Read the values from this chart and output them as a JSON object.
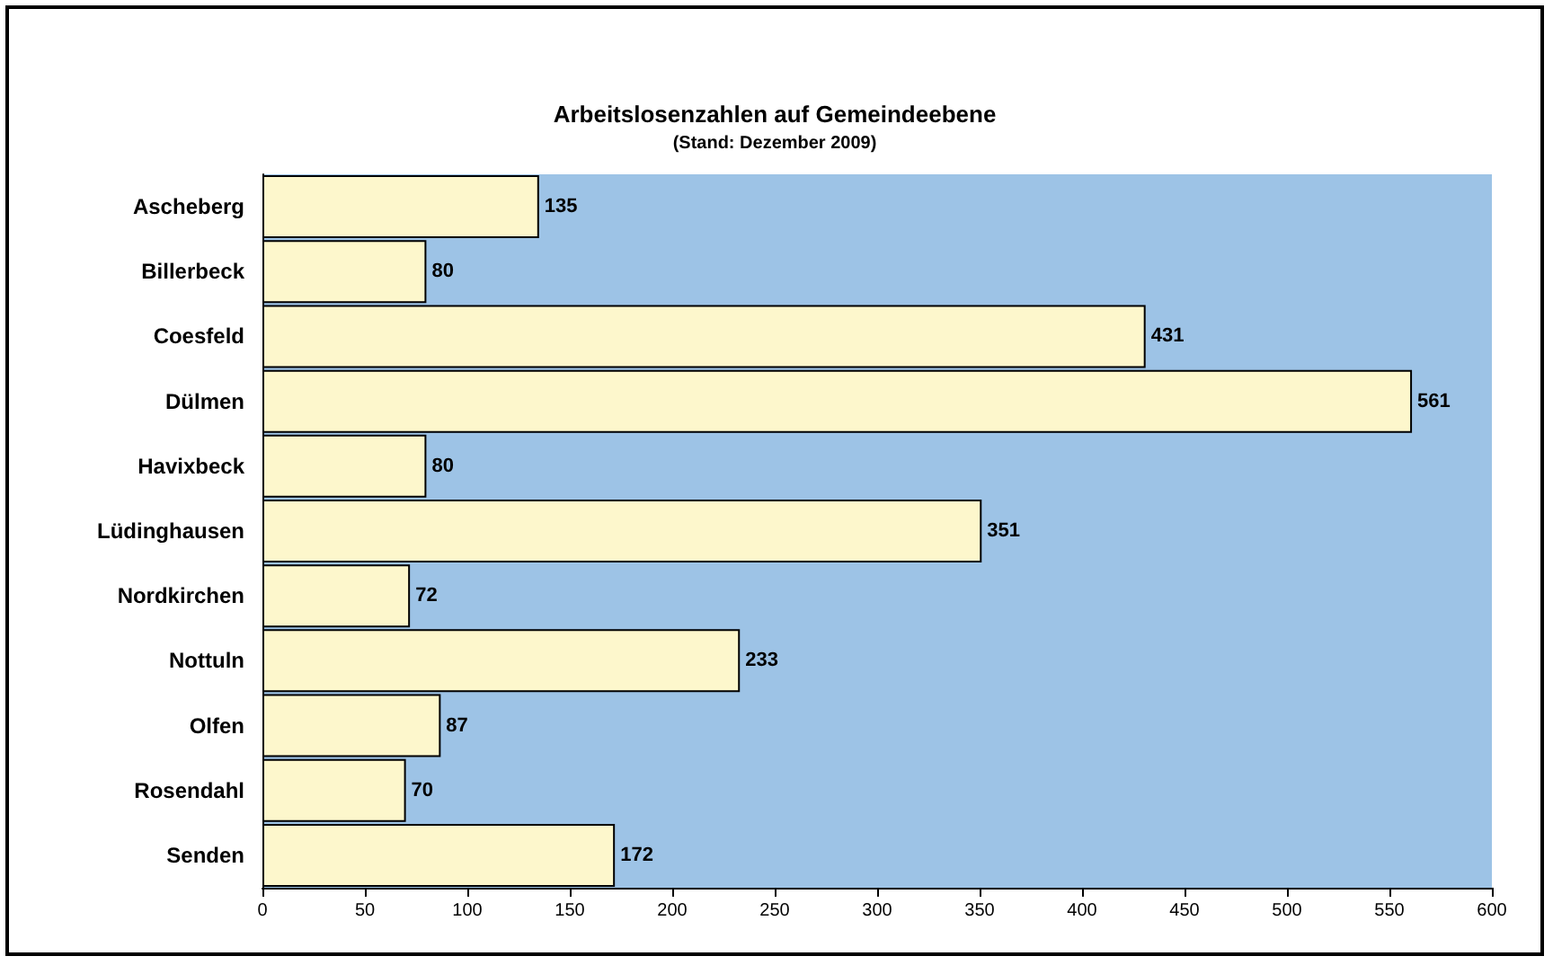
{
  "chart_data": {
    "type": "bar",
    "orientation": "horizontal",
    "title": "Arbeitslosenzahlen auf Gemeindeebene",
    "subtitle": "(Stand: Dezember 2009)",
    "categories": [
      "Ascheberg",
      "Billerbeck",
      "Coesfeld",
      "Dülmen",
      "Havixbeck",
      "Lüdinghausen",
      "Nordkirchen",
      "Nottuln",
      "Olfen",
      "Rosendahl",
      "Senden"
    ],
    "values": [
      135,
      80,
      431,
      561,
      80,
      351,
      72,
      233,
      87,
      70,
      172
    ],
    "color": "#fdf7cc",
    "data_labels": true,
    "grid": false,
    "xlim": [
      0,
      600
    ],
    "xticks": [
      0,
      50,
      100,
      150,
      200,
      250,
      300,
      350,
      400,
      450,
      500,
      550,
      600
    ]
  }
}
